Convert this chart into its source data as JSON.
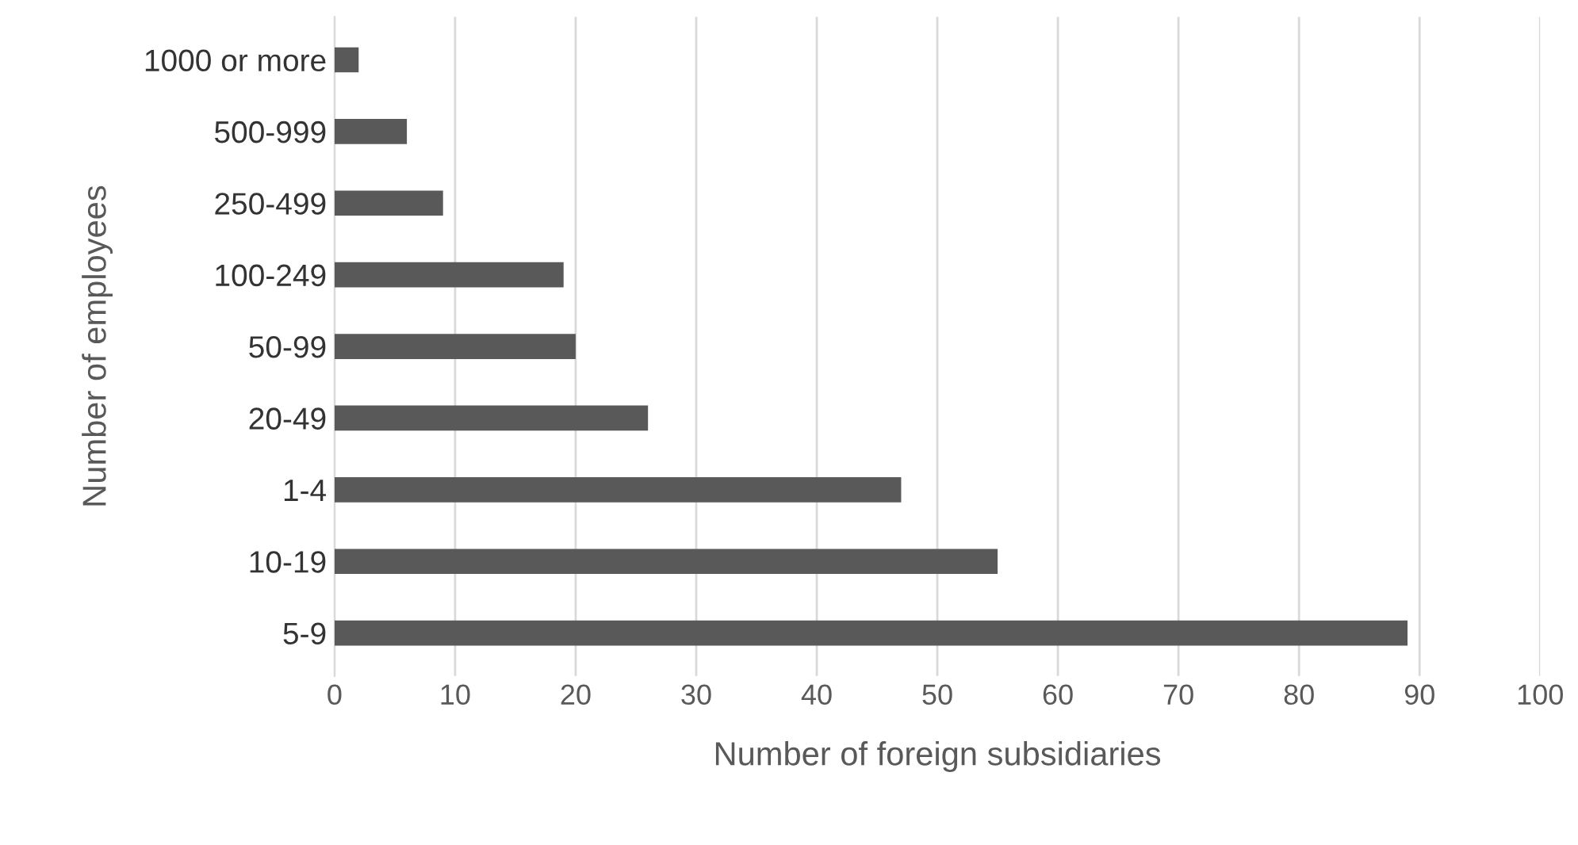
{
  "chart_data": {
    "type": "bar",
    "orientation": "horizontal",
    "xlabel": "Number of foreign subsidiaries",
    "ylabel": "Number of employees",
    "categories": [
      "1000 or more",
      "500-999",
      "250-499",
      "100-249",
      "50-99",
      "20-49",
      "1-4",
      "10-19",
      "5-9"
    ],
    "values": [
      2,
      6,
      9,
      19,
      20,
      26,
      47,
      55,
      89
    ],
    "color": "#595959",
    "xlim": [
      0,
      100
    ],
    "xticks": [
      0,
      10,
      20,
      30,
      40,
      50,
      60,
      70,
      80,
      90,
      100
    ],
    "grid": "x",
    "legend": false
  }
}
